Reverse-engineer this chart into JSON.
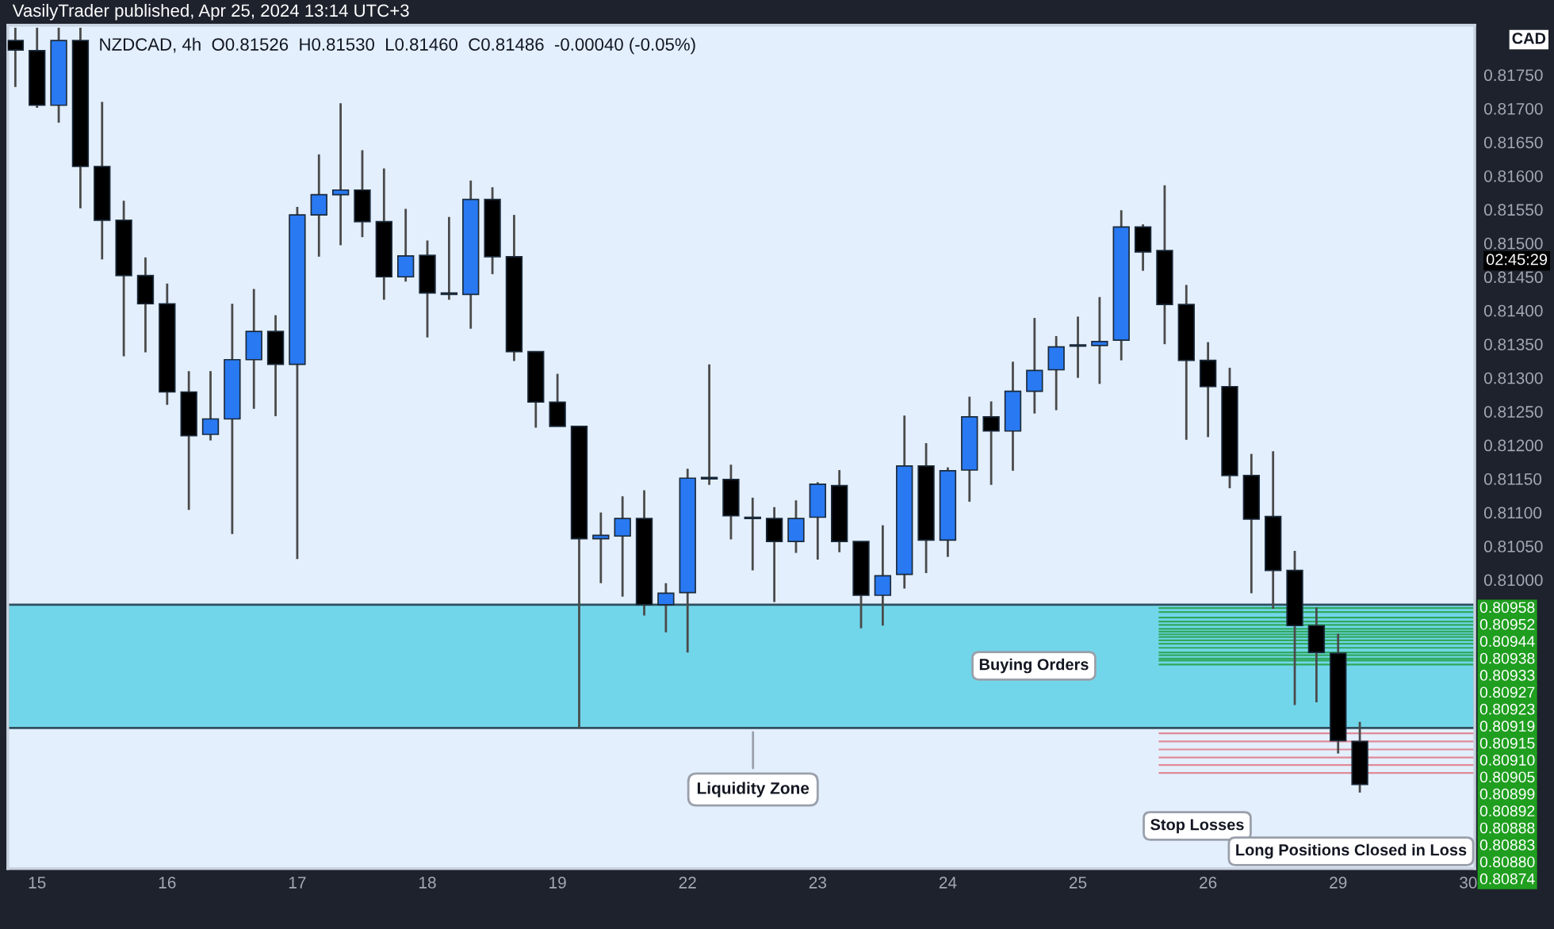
{
  "chart_data": {
    "type": "candlestick",
    "title": "VasilyTrader published, Apr 25, 2024 13:14 UTC+3",
    "subtitle": "NZDCAD, 4h  O0.81526  H0.81530  L0.81460  C0.81486  -0.00040 (-0.05%)",
    "categories": [
      null,
      "15",
      null,
      null,
      null,
      null,
      null,
      "16",
      null,
      null,
      null,
      null,
      null,
      "17",
      null,
      null,
      null,
      null,
      null,
      "18",
      null,
      null,
      null,
      null,
      null,
      "19",
      null,
      null,
      null,
      null,
      null,
      "22",
      null,
      null,
      null,
      null,
      null,
      "23",
      null,
      null,
      null,
      null,
      null,
      "24",
      null,
      null,
      null,
      null,
      null,
      "25",
      null,
      null,
      null,
      null,
      null,
      "26",
      null,
      null,
      null,
      null,
      null,
      "29",
      null,
      null,
      null,
      null,
      null,
      "30"
    ],
    "ohlc": [
      [
        0.81801,
        0.8182,
        0.81732,
        0.81787
      ],
      [
        0.81786,
        0.8182,
        0.81701,
        0.81705
      ],
      [
        0.81705,
        0.8182,
        0.81679,
        0.81801
      ],
      [
        0.81801,
        0.8182,
        0.81552,
        0.81614
      ],
      [
        0.81614,
        0.8171,
        0.81476,
        0.81534
      ],
      [
        0.81534,
        0.81563,
        0.81332,
        0.81452
      ],
      [
        0.81452,
        0.81479,
        0.81338,
        0.8141
      ],
      [
        0.8141,
        0.8144,
        0.8126,
        0.81279
      ],
      [
        0.81279,
        0.8131,
        0.81104,
        0.81214
      ],
      [
        0.81216,
        0.8131,
        0.81207,
        0.81239
      ],
      [
        0.81239,
        0.8141,
        0.81068,
        0.81327
      ],
      [
        0.81327,
        0.81432,
        0.81254,
        0.81369
      ],
      [
        0.81369,
        0.81393,
        0.81243,
        0.8132
      ],
      [
        0.8132,
        0.81554,
        0.81031,
        0.81542
      ],
      [
        0.81542,
        0.81632,
        0.8148,
        0.81572
      ],
      [
        0.81572,
        0.81708,
        0.81497,
        0.81579
      ],
      [
        0.81579,
        0.81638,
        0.81509,
        0.81532
      ],
      [
        0.81532,
        0.81611,
        0.81416,
        0.8145
      ],
      [
        0.8145,
        0.81551,
        0.81443,
        0.81481
      ],
      [
        0.81482,
        0.81504,
        0.8136,
        0.81426
      ],
      [
        0.81426,
        0.81539,
        0.81416,
        0.81424
      ],
      [
        0.81424,
        0.81593,
        0.81373,
        0.81565
      ],
      [
        0.81565,
        0.81583,
        0.81454,
        0.8148
      ],
      [
        0.8148,
        0.81542,
        0.81325,
        0.81339
      ],
      [
        0.81339,
        0.81339,
        0.81226,
        0.81264
      ],
      [
        0.81264,
        0.81306,
        0.81228,
        0.81228
      ],
      [
        0.81228,
        0.81228,
        0.8078,
        0.81061
      ],
      [
        0.81061,
        0.811,
        0.80995,
        0.81066
      ],
      [
        0.81065,
        0.81124,
        0.80975,
        0.81091
      ],
      [
        0.81091,
        0.81133,
        0.80947,
        0.80963
      ],
      [
        0.80963,
        0.80995,
        0.80922,
        0.8098
      ],
      [
        0.80981,
        0.81165,
        0.80892,
        0.81151
      ],
      [
        0.81152,
        0.8132,
        0.81141,
        0.8115
      ],
      [
        0.81149,
        0.81171,
        0.8106,
        0.81095
      ],
      [
        0.81093,
        0.81122,
        0.81014,
        0.81091
      ],
      [
        0.81091,
        0.81108,
        0.80967,
        0.81057
      ],
      [
        0.81057,
        0.81118,
        0.8104,
        0.81091
      ],
      [
        0.81093,
        0.81145,
        0.8103,
        0.81142
      ],
      [
        0.8114,
        0.81163,
        0.81041,
        0.81057
      ],
      [
        0.81057,
        0.81057,
        0.80928,
        0.80977
      ],
      [
        0.80977,
        0.81081,
        0.80932,
        0.81006
      ],
      [
        0.81008,
        0.81244,
        0.80987,
        0.81169
      ],
      [
        0.81169,
        0.81203,
        0.8101,
        0.81059
      ],
      [
        0.81059,
        0.81167,
        0.81034,
        0.81162
      ],
      [
        0.81163,
        0.81272,
        0.81116,
        0.81242
      ],
      [
        0.81242,
        0.81265,
        0.81141,
        0.81221
      ],
      [
        0.81221,
        0.81324,
        0.81162,
        0.8128
      ],
      [
        0.8128,
        0.81389,
        0.81247,
        0.81311
      ],
      [
        0.81312,
        0.81362,
        0.81252,
        0.81346
      ],
      [
        0.81347,
        0.81391,
        0.813,
        0.81349
      ],
      [
        0.81348,
        0.8142,
        0.81291,
        0.81354
      ],
      [
        0.81356,
        0.81549,
        0.81326,
        0.81524
      ],
      [
        0.81524,
        0.81528,
        0.81459,
        0.81487
      ],
      [
        0.81489,
        0.81586,
        0.8135,
        0.81409
      ],
      [
        0.81409,
        0.81438,
        0.81208,
        0.81326
      ],
      [
        0.81326,
        0.81353,
        0.81212,
        0.81287
      ],
      [
        0.81287,
        0.81315,
        0.81136,
        0.81155
      ],
      [
        0.81155,
        0.81187,
        0.8098,
        0.8109
      ],
      [
        0.81094,
        0.81191,
        0.80957,
        0.81014
      ],
      [
        0.81014,
        0.81043,
        0.80814,
        0.80932
      ],
      [
        0.80932,
        0.80959,
        0.80818,
        0.80892
      ],
      [
        0.80891,
        0.8092,
        0.80742,
        0.80761
      ],
      [
        0.8076,
        0.80789,
        0.80684,
        0.80696
      ],
      null,
      null,
      null,
      null,
      null
    ],
    "colors": [
      "#000000",
      "#000000",
      "#2979f2",
      "#000000",
      "#000000",
      "#000000",
      "#000000",
      "#000000",
      "#000000",
      "#2979f2",
      "#2979f2",
      "#2979f2",
      "#000000",
      "#2979f2",
      "#2979f2",
      "#2979f2",
      "#000000",
      "#000000",
      "#2979f2",
      "#000000",
      "#000000",
      "#2979f2",
      "#000000",
      "#000000",
      "#000000",
      "#000000",
      "#000000",
      "#2979f2",
      "#2979f2",
      "#000000",
      "#2979f2",
      "#2979f2",
      "#000000",
      "#000000",
      "#000000",
      "#000000",
      "#2979f2",
      "#2979f2",
      "#000000",
      "#000000",
      "#2979f2",
      "#2979f2",
      "#000000",
      "#2979f2",
      "#2979f2",
      "#000000",
      "#2979f2",
      "#2979f2",
      "#2979f2",
      "#2979f2",
      "#2979f2",
      "#2979f2",
      "#000000",
      "#000000",
      "#000000",
      "#000000",
      "#000000",
      "#000000",
      "#000000",
      "#000000",
      "#000000",
      "#000000",
      "#000000",
      null,
      null,
      null,
      null,
      null
    ],
    "ylim": [
      0.80571,
      0.81824
    ],
    "yticks": [
      {
        "value": 0.81,
        "label": "0.81000"
      },
      {
        "value": 0.8105,
        "label": "0.81050"
      },
      {
        "value": 0.811,
        "label": "0.81100"
      },
      {
        "value": 0.8115,
        "label": "0.81150"
      },
      {
        "value": 0.812,
        "label": "0.81200"
      },
      {
        "value": 0.8125,
        "label": "0.81250"
      },
      {
        "value": 0.813,
        "label": "0.81300"
      },
      {
        "value": 0.8135,
        "label": "0.81350"
      },
      {
        "value": 0.814,
        "label": "0.81400"
      },
      {
        "value": 0.8145,
        "label": "0.81450"
      },
      {
        "value": 0.815,
        "label": "0.81500"
      },
      {
        "value": 0.8155,
        "label": "0.81550"
      },
      {
        "value": 0.816,
        "label": "0.81600"
      },
      {
        "value": 0.8165,
        "label": "0.81650"
      },
      {
        "value": 0.817,
        "label": "0.81700"
      },
      {
        "value": 0.8175,
        "label": "0.81750"
      }
    ],
    "bands": [
      {
        "axis": "y",
        "from": 0.8078,
        "to": 0.80963,
        "label": "Liquidity Zone",
        "color": "#72d6ea"
      }
    ],
    "ref_lines": [
      {
        "axis": "y",
        "value": 0.80958,
        "color": "#1f9e3a"
      },
      {
        "axis": "y",
        "value": 0.80952,
        "color": "#1f9e3a"
      },
      {
        "axis": "y",
        "value": 0.80944,
        "color": "#1f9e3a"
      },
      {
        "axis": "y",
        "value": 0.80938,
        "color": "#1f9e3a"
      },
      {
        "axis": "y",
        "value": 0.80933,
        "color": "#1f9e3a"
      },
      {
        "axis": "y",
        "value": 0.80927,
        "color": "#1f9e3a"
      },
      {
        "axis": "y",
        "value": 0.80923,
        "color": "#1f9e3a"
      },
      {
        "axis": "y",
        "value": 0.80919,
        "color": "#1f9e3a"
      },
      {
        "axis": "y",
        "value": 0.80915,
        "color": "#1f9e3a"
      },
      {
        "axis": "y",
        "value": 0.8091,
        "color": "#1f9e3a"
      },
      {
        "axis": "y",
        "value": 0.80905,
        "color": "#1f9e3a"
      },
      {
        "axis": "y",
        "value": 0.80899,
        "color": "#1f9e3a"
      },
      {
        "axis": "y",
        "value": 0.80892,
        "color": "#1f9e3a"
      },
      {
        "axis": "y",
        "value": 0.80888,
        "color": "#1f9e3a"
      },
      {
        "axis": "y",
        "value": 0.80883,
        "color": "#1f9e3a"
      },
      {
        "axis": "y",
        "value": 0.8088,
        "color": "#1f9e3a"
      },
      {
        "axis": "y",
        "value": 0.80874,
        "color": "#1f9e3a"
      },
      {
        "axis": "y",
        "value": 0.80772,
        "color": "#e0707e"
      },
      {
        "axis": "y",
        "value": 0.8076,
        "color": "#e0707e"
      },
      {
        "axis": "y",
        "value": 0.80748,
        "color": "#e0707e"
      },
      {
        "axis": "y",
        "value": 0.80736,
        "color": "#e0707e"
      },
      {
        "axis": "y",
        "value": 0.80725,
        "color": "#e0707e"
      },
      {
        "axis": "y",
        "value": 0.80713,
        "color": "#e0707e"
      }
    ],
    "annotations": [
      "CAD",
      "02:45:29",
      "Buying Orders",
      "Stop Losses",
      "Long Positions Closed in Loss",
      "0.80958",
      "0.80952",
      "0.80944",
      "0.80938",
      "0.80933",
      "0.80927",
      "0.80923",
      "0.80919",
      "0.80915",
      "0.80910",
      "0.80905",
      "0.80899",
      "0.80892",
      "0.80888",
      "0.80883",
      "0.80880",
      "0.80874"
    ]
  }
}
